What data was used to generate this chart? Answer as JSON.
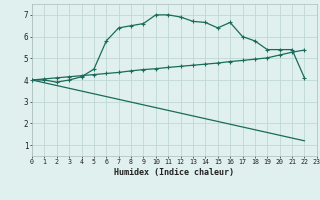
{
  "xlabel": "Humidex (Indice chaleur)",
  "bg_color": "#dff0ee",
  "grid_color": "#c0d8d4",
  "line_color": "#1a6b5a",
  "line1_x": [
    0,
    1,
    2,
    3,
    4,
    5,
    6,
    7,
    8,
    9,
    10,
    11,
    12,
    13,
    14,
    15,
    16,
    17,
    18,
    19,
    20,
    21,
    22
  ],
  "line1_y": [
    4.0,
    4.0,
    3.9,
    4.0,
    4.15,
    4.5,
    5.8,
    6.4,
    6.5,
    6.6,
    7.0,
    7.0,
    6.9,
    6.7,
    6.65,
    6.4,
    6.65,
    6.0,
    5.8,
    5.4,
    5.4,
    5.4,
    4.1
  ],
  "line2_x": [
    0,
    22
  ],
  "line2_y": [
    4.0,
    1.2
  ],
  "line3_x": [
    0,
    1,
    2,
    3,
    4,
    5,
    6,
    7,
    8,
    9,
    10,
    11,
    12,
    13,
    14,
    15,
    16,
    17,
    18,
    19,
    20,
    21,
    22
  ],
  "line3_y": [
    4.0,
    4.05,
    4.1,
    4.15,
    4.2,
    4.25,
    4.3,
    4.35,
    4.42,
    4.48,
    4.52,
    4.58,
    4.63,
    4.68,
    4.73,
    4.78,
    4.85,
    4.9,
    4.96,
    5.02,
    5.15,
    5.28,
    5.38
  ],
  "xlim": [
    0,
    23
  ],
  "ylim": [
    0.5,
    7.5
  ],
  "xtick_vals": [
    0,
    1,
    2,
    3,
    4,
    5,
    6,
    7,
    8,
    9,
    10,
    11,
    12,
    13,
    14,
    15,
    16,
    17,
    18,
    19,
    20,
    21,
    22,
    23
  ],
  "xtick_labels": [
    "0",
    "1",
    "2",
    "3",
    "4",
    "5",
    "6",
    "7",
    "8",
    "9",
    "10",
    "11",
    "12",
    "13",
    "14",
    "15",
    "16",
    "17",
    "18",
    "19",
    "20",
    "21",
    "22",
    "23"
  ],
  "ytick_vals": [
    1,
    2,
    3,
    4,
    5,
    6,
    7
  ],
  "ytick_labels": [
    "1",
    "2",
    "3",
    "4",
    "5",
    "6",
    "7"
  ]
}
